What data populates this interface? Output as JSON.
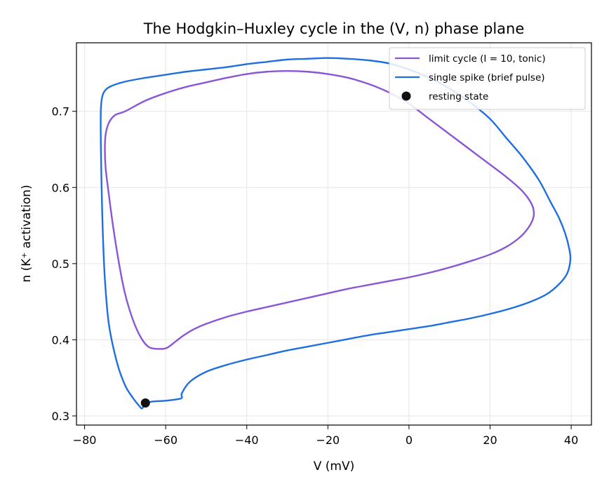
{
  "chart_data": {
    "type": "line",
    "title": "The Hodgkin–Huxley cycle in the (V, n) phase plane",
    "xlabel": "V (mV)",
    "ylabel": "n  (K⁺ activation)",
    "xlim": [
      -82,
      45
    ],
    "ylim": [
      0.288,
      0.79
    ],
    "xticks": [
      -80,
      -60,
      -40,
      -20,
      0,
      20,
      40
    ],
    "yticks": [
      0.3,
      0.4,
      0.5,
      0.6,
      0.7
    ],
    "xtick_labels": [
      "−80",
      "−60",
      "−40",
      "−20",
      "0",
      "20",
      "40"
    ],
    "ytick_labels": [
      "0.3",
      "0.4",
      "0.5",
      "0.6",
      "0.7"
    ],
    "grid": true,
    "legend_position": "top-right",
    "series": [
      {
        "name": "limit cycle (I = 10, tonic)",
        "color": "#8a56d6",
        "x": [
          -61.2,
          -59.5,
          -57.5,
          -55.5,
          -53,
          -50,
          -45,
          -40,
          -35,
          -30,
          -25,
          -20,
          -15,
          -10,
          -5,
          0,
          5,
          10,
          15,
          20,
          24,
          27,
          29,
          30.3,
          30.8,
          30.5,
          29.5,
          28,
          26,
          23,
          20,
          15,
          10,
          5,
          0,
          -5,
          -10,
          -15,
          -20,
          -25,
          -30,
          -35,
          -40,
          -45,
          -50,
          -55,
          -60,
          -65,
          -70,
          -72.5,
          -74,
          -74.8,
          -75,
          -74.8,
          -74,
          -73,
          -71.5,
          -70,
          -68,
          -66,
          -64
        ],
        "y": [
          0.388,
          0.39,
          0.398,
          0.406,
          0.414,
          0.421,
          0.43,
          0.437,
          0.443,
          0.449,
          0.455,
          0.461,
          0.467,
          0.472,
          0.477,
          0.482,
          0.488,
          0.495,
          0.503,
          0.512,
          0.522,
          0.533,
          0.544,
          0.555,
          0.565,
          0.575,
          0.585,
          0.595,
          0.605,
          0.618,
          0.63,
          0.65,
          0.67,
          0.69,
          0.71,
          0.725,
          0.736,
          0.744,
          0.749,
          0.752,
          0.753,
          0.752,
          0.749,
          0.744,
          0.738,
          0.732,
          0.724,
          0.714,
          0.7,
          0.695,
          0.685,
          0.67,
          0.65,
          0.625,
          0.59,
          0.55,
          0.5,
          0.46,
          0.425,
          0.402,
          0.39
        ],
        "closed": true
      },
      {
        "name": "single spike (brief pulse)",
        "color": "#1f6fe0",
        "x": [
          -65,
          -63,
          -60,
          -57,
          -56,
          -56,
          -54,
          -50,
          -45,
          -40,
          -35,
          -30,
          -25,
          -20,
          -15,
          -10,
          -5,
          0,
          5,
          10,
          15,
          20,
          25,
          30,
          34,
          37,
          39,
          39.8,
          39.5,
          38.5,
          37,
          35,
          32,
          28,
          24,
          20,
          15,
          10,
          5,
          0,
          -5,
          -10,
          -15,
          -20,
          -25,
          -30,
          -35,
          -40,
          -45,
          -50,
          -55,
          -60,
          -65,
          -70,
          -73.5,
          -75,
          -75.7,
          -76,
          -76,
          -75.8,
          -75.5,
          -75,
          -74,
          -72,
          -70,
          -68,
          -66.5,
          -65.8,
          -65
        ],
        "y": [
          0.317,
          0.319,
          0.32,
          0.322,
          0.324,
          0.33,
          0.345,
          0.358,
          0.367,
          0.374,
          0.38,
          0.386,
          0.391,
          0.396,
          0.401,
          0.406,
          0.41,
          0.414,
          0.418,
          0.423,
          0.428,
          0.434,
          0.441,
          0.45,
          0.46,
          0.473,
          0.487,
          0.505,
          0.52,
          0.54,
          0.56,
          0.58,
          0.61,
          0.64,
          0.665,
          0.69,
          0.712,
          0.73,
          0.744,
          0.755,
          0.763,
          0.767,
          0.769,
          0.77,
          0.769,
          0.768,
          0.765,
          0.762,
          0.758,
          0.755,
          0.752,
          0.748,
          0.744,
          0.739,
          0.733,
          0.727,
          0.718,
          0.7,
          0.66,
          0.6,
          0.54,
          0.48,
          0.42,
          0.37,
          0.34,
          0.323,
          0.313,
          0.31,
          0.317
        ],
        "closed": false
      }
    ],
    "points": [
      {
        "name": "resting state",
        "x": -65,
        "y": 0.317,
        "color": "#111111"
      }
    ]
  }
}
